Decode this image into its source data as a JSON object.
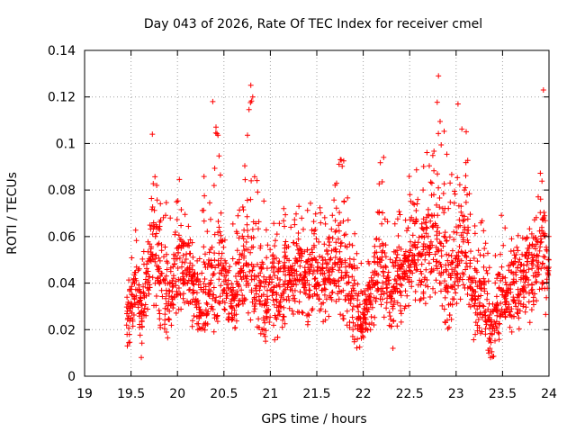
{
  "chart_data": {
    "type": "scatter",
    "title": "Day 043 of 2026, Rate Of TEC Index for receiver cmel",
    "xlabel": "GPS time / hours",
    "ylabel": "ROTI / TECUs",
    "xlim": [
      19,
      24
    ],
    "ylim": [
      0,
      0.14
    ],
    "x_ticks": [
      19,
      19.5,
      20,
      20.5,
      21,
      21.5,
      22,
      22.5,
      23,
      23.5,
      24
    ],
    "x_tick_labels": [
      "19",
      "19.5",
      "20",
      "20.5",
      "21",
      "21.5",
      "22",
      "22.5",
      "23",
      "23.5",
      "24"
    ],
    "y_ticks": [
      0,
      0.02,
      0.04,
      0.06,
      0.08,
      0.1,
      0.12,
      0.14
    ],
    "y_tick_labels": [
      "0",
      "0.02",
      "0.04",
      "0.06",
      "0.08",
      "0.1",
      "0.12",
      "0.14"
    ],
    "grid": true,
    "marker": "+",
    "color": "#ff0000",
    "envelope": {
      "x": [
        19.45,
        19.5,
        19.55,
        19.6,
        19.65,
        19.7,
        19.75,
        19.8,
        19.85,
        19.9,
        19.95,
        20.0,
        20.05,
        20.1,
        20.15,
        20.2,
        20.25,
        20.3,
        20.35,
        20.4,
        20.45,
        20.5,
        20.55,
        20.6,
        20.65,
        20.7,
        20.75,
        20.8,
        20.85,
        20.9,
        20.95,
        21.0,
        21.05,
        21.1,
        21.15,
        21.2,
        21.25,
        21.3,
        21.35,
        21.4,
        21.45,
        21.5,
        21.55,
        21.6,
        21.65,
        21.7,
        21.75,
        21.8,
        21.85,
        21.9,
        21.95,
        22.0,
        22.05,
        22.1,
        22.15,
        22.2,
        22.25,
        22.3,
        22.35,
        22.4,
        22.45,
        22.5,
        22.55,
        22.6,
        22.65,
        22.7,
        22.75,
        22.8,
        22.85,
        22.9,
        22.95,
        23.0,
        23.05,
        23.1,
        23.15,
        23.2,
        23.25,
        23.3,
        23.35,
        23.4,
        23.45,
        23.5,
        23.55,
        23.6,
        23.65,
        23.7,
        23.75,
        23.8,
        23.85,
        23.9,
        23.95,
        24.0
      ],
      "low": [
        0.012,
        0.015,
        0.018,
        0.008,
        0.015,
        0.025,
        0.03,
        0.02,
        0.022,
        0.015,
        0.02,
        0.025,
        0.03,
        0.025,
        0.02,
        0.02,
        0.018,
        0.02,
        0.025,
        0.018,
        0.025,
        0.028,
        0.02,
        0.018,
        0.02,
        0.02,
        0.022,
        0.025,
        0.022,
        0.018,
        0.015,
        0.025,
        0.015,
        0.018,
        0.02,
        0.025,
        0.025,
        0.025,
        0.022,
        0.02,
        0.025,
        0.025,
        0.02,
        0.022,
        0.025,
        0.025,
        0.02,
        0.025,
        0.015,
        0.012,
        0.012,
        0.014,
        0.02,
        0.02,
        0.025,
        0.025,
        0.022,
        0.02,
        0.022,
        0.018,
        0.025,
        0.025,
        0.03,
        0.03,
        0.03,
        0.025,
        0.025,
        0.03,
        0.025,
        0.02,
        0.022,
        0.025,
        0.025,
        0.02,
        0.018,
        0.015,
        0.018,
        0.02,
        0.01,
        0.008,
        0.015,
        0.018,
        0.02,
        0.015,
        0.018,
        0.02,
        0.025,
        0.02,
        0.025,
        0.03,
        0.025,
        0.025
      ],
      "high": [
        0.035,
        0.05,
        0.068,
        0.05,
        0.055,
        0.062,
        0.104,
        0.09,
        0.078,
        0.075,
        0.07,
        0.09,
        0.085,
        0.07,
        0.068,
        0.065,
        0.1,
        0.085,
        0.075,
        0.118,
        0.1,
        0.06,
        0.055,
        0.075,
        0.07,
        0.075,
        0.112,
        0.125,
        0.1,
        0.09,
        0.075,
        0.065,
        0.072,
        0.08,
        0.078,
        0.07,
        0.068,
        0.075,
        0.07,
        0.08,
        0.078,
        0.074,
        0.075,
        0.073,
        0.073,
        0.085,
        0.093,
        0.094,
        0.075,
        0.065,
        0.058,
        0.05,
        0.06,
        0.075,
        0.085,
        0.095,
        0.068,
        0.065,
        0.07,
        0.072,
        0.078,
        0.088,
        0.095,
        0.09,
        0.095,
        0.1,
        0.108,
        0.129,
        0.122,
        0.105,
        0.09,
        0.082,
        0.117,
        0.112,
        0.075,
        0.068,
        0.07,
        0.065,
        0.06,
        0.055,
        0.07,
        0.072,
        0.06,
        0.062,
        0.065,
        0.063,
        0.065,
        0.07,
        0.068,
        0.085,
        0.123,
        0.07
      ],
      "center": [
        0.025,
        0.03,
        0.045,
        0.028,
        0.035,
        0.05,
        0.06,
        0.045,
        0.035,
        0.03,
        0.04,
        0.05,
        0.048,
        0.045,
        0.04,
        0.035,
        0.03,
        0.035,
        0.045,
        0.04,
        0.05,
        0.042,
        0.035,
        0.032,
        0.04,
        0.045,
        0.05,
        0.05,
        0.04,
        0.035,
        0.03,
        0.04,
        0.035,
        0.035,
        0.04,
        0.045,
        0.042,
        0.05,
        0.045,
        0.04,
        0.048,
        0.045,
        0.04,
        0.045,
        0.05,
        0.052,
        0.048,
        0.05,
        0.04,
        0.03,
        0.025,
        0.025,
        0.03,
        0.038,
        0.045,
        0.045,
        0.04,
        0.035,
        0.04,
        0.04,
        0.045,
        0.05,
        0.052,
        0.05,
        0.055,
        0.055,
        0.06,
        0.065,
        0.055,
        0.045,
        0.04,
        0.045,
        0.055,
        0.05,
        0.04,
        0.03,
        0.03,
        0.032,
        0.025,
        0.02,
        0.035,
        0.035,
        0.035,
        0.04,
        0.04,
        0.04,
        0.045,
        0.045,
        0.045,
        0.05,
        0.055,
        0.045
      ]
    },
    "points_per_step": 26,
    "extreme_points": [
      {
        "x": 19.46,
        "y": 0.013
      },
      {
        "x": 19.61,
        "y": 0.008
      },
      {
        "x": 19.73,
        "y": 0.104
      },
      {
        "x": 20.38,
        "y": 0.118
      },
      {
        "x": 20.79,
        "y": 0.125
      },
      {
        "x": 20.81,
        "y": 0.12
      },
      {
        "x": 22.22,
        "y": 0.094
      },
      {
        "x": 22.32,
        "y": 0.012
      },
      {
        "x": 22.81,
        "y": 0.129
      },
      {
        "x": 23.02,
        "y": 0.117
      },
      {
        "x": 23.37,
        "y": 0.008
      },
      {
        "x": 23.94,
        "y": 0.123
      }
    ]
  }
}
